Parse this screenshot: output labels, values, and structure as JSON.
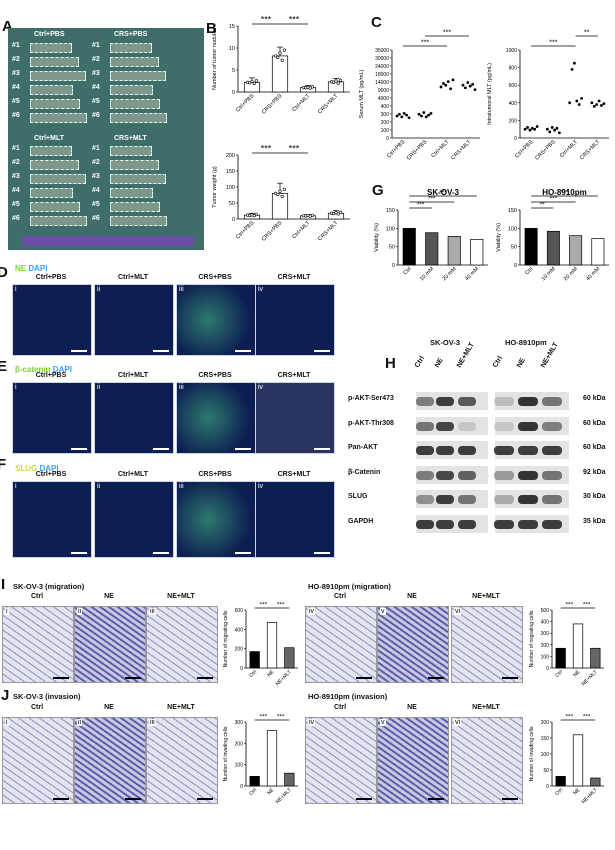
{
  "panels": {
    "A": {
      "letter": "A",
      "group_left_top": "Ctrl+PBS",
      "group_right_top": "CRS+PBS",
      "group_left_bottom": "Ctrl+MLT",
      "group_right_bottom": "CRS+MLT",
      "rows": [
        "#1",
        "#2",
        "#3",
        "#4",
        "#5",
        "#6"
      ]
    },
    "B": {
      "letter": "B"
    },
    "C": {
      "letter": "C"
    },
    "G": {
      "letter": "G"
    },
    "D": {
      "letter": "D",
      "stain": "NE",
      "dapi": "DAPI"
    },
    "E": {
      "letter": "E",
      "stain": "β-catenin",
      "dapi": "DAPI"
    },
    "F": {
      "letter": "F",
      "stain": "SLUG",
      "dapi": "DAPI"
    },
    "H": {
      "letter": "H",
      "cell_left": "SK-OV-3",
      "cell_right": "HO-8910pm"
    },
    "I": {
      "letter": "I",
      "left_title": "SK-OV-3 (migration)",
      "right_title": "HO-8910pm (migration)"
    },
    "J": {
      "letter": "J",
      "left_title": "SK-OV-3 (invasion)",
      "right_title": "HO-8910pm (invasion)"
    }
  },
  "if_headers": [
    "Ctrl+PBS",
    "Ctrl+MLT",
    "CRS+PBS",
    "CRS+MLT"
  ],
  "roman": [
    "i",
    "ii",
    "iii",
    "iv",
    "v",
    "vi"
  ],
  "assay_headers": [
    "Ctrl",
    "NE",
    "NE+MLT"
  ],
  "wb": {
    "lanes": [
      "Ctrl",
      "NE",
      "NE+MLT"
    ],
    "rows": [
      {
        "protein": "p-AKT-Ser473",
        "kda": "60 kDa"
      },
      {
        "protein": "p-AKT-Thr308",
        "kda": "60 kDa"
      },
      {
        "protein": "Pan-AKT",
        "kda": "60 kDa"
      },
      {
        "protein": "β-Catenin",
        "kda": "92 kDa"
      },
      {
        "protein": "SLUG",
        "kda": "30 kDa"
      },
      {
        "protein": "GAPDH",
        "kda": "35 kDa"
      }
    ],
    "intensity_left": [
      [
        0.55,
        0.9,
        0.75
      ],
      [
        0.6,
        0.85,
        0.15
      ],
      [
        0.9,
        0.9,
        0.9
      ],
      [
        0.55,
        0.85,
        0.7
      ],
      [
        0.45,
        0.9,
        0.6
      ],
      [
        0.9,
        0.9,
        0.9
      ]
    ],
    "intensity_right": [
      [
        0.2,
        0.95,
        0.6
      ],
      [
        0.15,
        0.95,
        0.55
      ],
      [
        0.9,
        0.9,
        0.9
      ],
      [
        0.4,
        0.95,
        0.6
      ],
      [
        0.3,
        0.95,
        0.6
      ],
      [
        0.9,
        0.9,
        0.9
      ]
    ]
  },
  "chart_data": [
    {
      "id": "B1",
      "type": "bar",
      "categories": [
        "Ctrl+PBS",
        "CRS+PBS",
        "Ctrl+MLT",
        "CRS+MLT"
      ],
      "values": [
        2.2,
        8.2,
        1.0,
        2.3
      ],
      "errors": [
        1.0,
        2.0,
        0.5,
        0.8
      ],
      "ylabel": "Number of tumor nodules",
      "ylim": [
        0,
        15
      ],
      "yticks": [
        0,
        5,
        10,
        15
      ],
      "sig": [
        "***",
        "***"
      ]
    },
    {
      "id": "B2",
      "type": "bar",
      "categories": [
        "Ctrl+PBS",
        "CRS+PBS",
        "Ctrl+MLT",
        "CRS+MLT"
      ],
      "values": [
        12,
        80,
        10,
        18
      ],
      "errors": [
        6,
        32,
        4,
        8
      ],
      "ylabel": "Tumor weight (g)",
      "ylim": [
        0,
        200
      ],
      "yticks": [
        0,
        50,
        100,
        150,
        200
      ],
      "sig": [
        "***",
        "***"
      ]
    },
    {
      "id": "C1",
      "type": "scatter",
      "categories": [
        "Ctrl+PBS",
        "CRS+PBS",
        "Ctrl+MLT",
        "CRS+MLT"
      ],
      "ylabel": "Serum MLT (pg/mL)",
      "ytick_labels": [
        "0",
        "100",
        "200",
        "300",
        "400",
        "4000",
        "9000",
        "14000",
        "18000",
        "24000",
        "30000",
        "35000"
      ],
      "sig": [
        "***",
        "***"
      ]
    },
    {
      "id": "C2",
      "type": "scatter",
      "categories": [
        "Ctrl+PBS",
        "CRS+PBS",
        "Ctrl+MLT",
        "CRS+MLT"
      ],
      "ylabel": "Intratumoral MLT (pg/mL)",
      "yticks": [
        0,
        200,
        400,
        600,
        800,
        1000
      ],
      "ylim": [
        0,
        1000
      ],
      "sig": [
        "***",
        "**"
      ]
    },
    {
      "id": "G1",
      "type": "bar",
      "title": "SK-OV-3",
      "categories": [
        "Ctrl",
        "10 mM",
        "20 mM",
        "40 mM"
      ],
      "values": [
        100,
        88,
        78,
        70
      ],
      "ylabel": "Viability (%)",
      "ylim": [
        0,
        150
      ],
      "yticks": [
        0,
        50,
        100,
        150
      ],
      "sig": [
        "***",
        "***",
        "***"
      ]
    },
    {
      "id": "G2",
      "type": "bar",
      "title": "HO-8910pm",
      "categories": [
        "Ctrl",
        "10 mM",
        "20 mM",
        "40 mM"
      ],
      "values": [
        100,
        92,
        80,
        72
      ],
      "ylabel": "Viability (%)",
      "ylim": [
        0,
        150
      ],
      "yticks": [
        0,
        50,
        100,
        150
      ],
      "sig": [
        "**",
        "***",
        "***"
      ]
    },
    {
      "id": "I1",
      "type": "bar",
      "categories": [
        "Ctrl",
        "NE",
        "NE+MLT"
      ],
      "values": [
        170,
        470,
        210
      ],
      "ylabel": "Number of migrating cells",
      "ylim": [
        0,
        600
      ],
      "yticks": [
        0,
        200,
        400,
        600
      ],
      "sig": [
        "***",
        "***"
      ]
    },
    {
      "id": "I2",
      "type": "bar",
      "categories": [
        "Ctrl",
        "NE",
        "NE+MLT"
      ],
      "values": [
        170,
        380,
        170
      ],
      "ylabel": "Number of migrating cells",
      "ylim": [
        0,
        500
      ],
      "yticks": [
        0,
        100,
        200,
        300,
        400,
        500
      ],
      "sig": [
        "***",
        "***"
      ]
    },
    {
      "id": "J1",
      "type": "bar",
      "categories": [
        "Ctrl",
        "NE",
        "NE+MLT"
      ],
      "values": [
        45,
        260,
        60
      ],
      "ylabel": "Number of invading cells",
      "ylim": [
        0,
        300
      ],
      "yticks": [
        0,
        100,
        200,
        300
      ],
      "sig": [
        "***",
        "***"
      ]
    },
    {
      "id": "J2",
      "type": "bar",
      "categories": [
        "Ctrl",
        "NE",
        "NE+MLT"
      ],
      "values": [
        30,
        160,
        25
      ],
      "ylabel": "Number of invading cells",
      "ylim": [
        0,
        200
      ],
      "yticks": [
        0,
        50,
        100,
        150,
        200
      ],
      "sig": [
        "***",
        "***"
      ]
    }
  ]
}
